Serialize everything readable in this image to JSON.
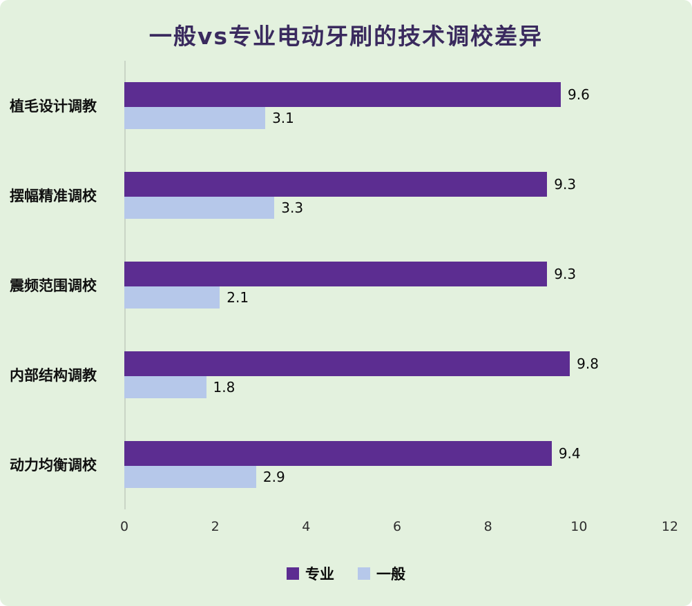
{
  "chart_data": {
    "type": "bar",
    "orientation": "horizontal",
    "title": "一般vs专业电动牙刷的技术调校差异",
    "categories": [
      "植毛设计调教",
      "摆幅精准调校",
      "震频范围调校",
      "内部结构调教",
      "动力均衡调校"
    ],
    "series": [
      {
        "name": "专业",
        "color": "#5c2d91",
        "values": [
          9.6,
          9.3,
          9.3,
          9.8,
          9.4
        ]
      },
      {
        "name": "一般",
        "color": "#b6c8ea",
        "values": [
          3.1,
          3.3,
          2.1,
          1.8,
          2.9
        ]
      }
    ],
    "xlabel": "",
    "ylabel": "",
    "xlim": [
      0,
      12
    ],
    "x_ticks": [
      0,
      2,
      4,
      6,
      8,
      10,
      12
    ],
    "grid": false,
    "legend_position": "bottom",
    "background_color": "#e3f1de",
    "value_label_decimals": 1
  }
}
